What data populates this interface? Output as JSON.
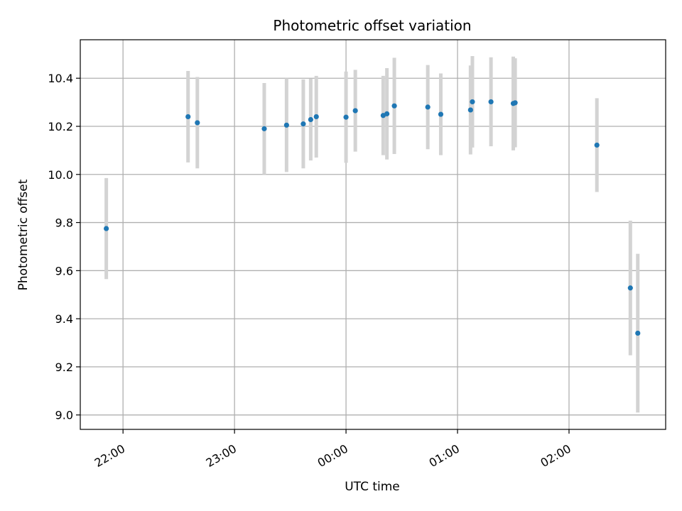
{
  "chart_data": {
    "type": "scatter",
    "title": "Photometric offset variation",
    "xlabel": "UTC time",
    "ylabel": "Photometric offset",
    "x_ticks": [
      "22:00",
      "23:00",
      "00:00",
      "01:00",
      "02:00"
    ],
    "y_ticks": [
      "9.0",
      "9.2",
      "9.4",
      "9.6",
      "9.8",
      "10.0",
      "10.2",
      "10.4"
    ],
    "xlim": [
      "21:37",
      "02:52"
    ],
    "ylim": [
      8.94,
      10.56
    ],
    "grid": true,
    "marker_color": "#1f77b4",
    "errorbar_color": "#d3d3d3",
    "series": [
      {
        "points": [
          {
            "time": "21:51",
            "y": 9.775,
            "err": 0.21
          },
          {
            "time": "22:35",
            "y": 10.24,
            "err": 0.19
          },
          {
            "time": "22:40",
            "y": 10.215,
            "err": 0.19
          },
          {
            "time": "23:16",
            "y": 10.19,
            "err": 0.19
          },
          {
            "time": "23:28",
            "y": 10.205,
            "err": 0.195
          },
          {
            "time": "23:37",
            "y": 10.21,
            "err": 0.185
          },
          {
            "time": "23:41",
            "y": 10.228,
            "err": 0.17
          },
          {
            "time": "23:44",
            "y": 10.24,
            "err": 0.17
          },
          {
            "time": "00:00",
            "y": 10.238,
            "err": 0.19
          },
          {
            "time": "00:05",
            "y": 10.265,
            "err": 0.17
          },
          {
            "time": "00:20",
            "y": 10.245,
            "err": 0.165
          },
          {
            "time": "00:22",
            "y": 10.252,
            "err": 0.19
          },
          {
            "time": "00:26",
            "y": 10.285,
            "err": 0.2
          },
          {
            "time": "00:44",
            "y": 10.28,
            "err": 0.175
          },
          {
            "time": "00:51",
            "y": 10.25,
            "err": 0.17
          },
          {
            "time": "01:07",
            "y": 10.268,
            "err": 0.185
          },
          {
            "time": "01:08",
            "y": 10.302,
            "err": 0.19
          },
          {
            "time": "01:18",
            "y": 10.302,
            "err": 0.185
          },
          {
            "time": "01:30",
            "y": 10.295,
            "err": 0.195
          },
          {
            "time": "01:31",
            "y": 10.298,
            "err": 0.185
          },
          {
            "time": "02:15",
            "y": 10.122,
            "err": 0.195
          },
          {
            "time": "02:33",
            "y": 9.528,
            "err": 0.28
          },
          {
            "time": "02:37",
            "y": 9.34,
            "err": 0.33
          }
        ]
      }
    ]
  }
}
